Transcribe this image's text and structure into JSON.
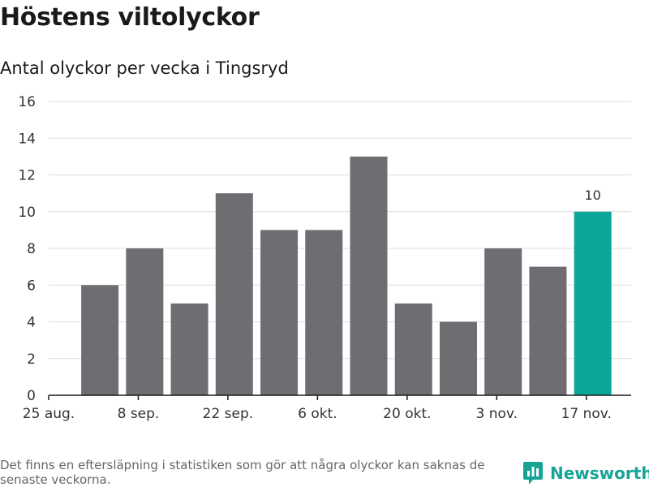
{
  "title": "Höstens viltolyckor",
  "subtitle": "Antal olyckor per vecka i Tingsryd",
  "footnote": "Det finns en eftersläpning i statistiken som gör att några olyckor kan saknas de senaste veckorna.",
  "brand": {
    "name": "Newsworthy",
    "color": "#17a497"
  },
  "colors": {
    "bar": "#6e6d72",
    "highlight": "#0ba59a",
    "grid": "#dcdcdc",
    "axis": "#1a1a1a"
  },
  "chart_data": {
    "type": "bar",
    "title": "Höstens viltolyckor",
    "subtitle": "Antal olyckor per vecka i Tingsryd",
    "xlabel": "",
    "ylabel": "",
    "x_axis": "date",
    "x_range": [
      "2024-08-25",
      "2024-11-24"
    ],
    "ylim": [
      0,
      16
    ],
    "yticks": [
      0,
      2,
      4,
      6,
      8,
      10,
      12,
      14,
      16
    ],
    "xticks": [
      {
        "date": "2024-08-25",
        "label": "25 aug."
      },
      {
        "date": "2024-09-08",
        "label": "8 sep."
      },
      {
        "date": "2024-09-22",
        "label": "22 sep."
      },
      {
        "date": "2024-10-06",
        "label": "6 okt."
      },
      {
        "date": "2024-10-20",
        "label": "20 okt."
      },
      {
        "date": "2024-11-03",
        "label": "3 nov."
      },
      {
        "date": "2024-11-17",
        "label": "17 nov."
      }
    ],
    "grid": true,
    "categories": [
      "2024-09-02",
      "2024-09-09",
      "2024-09-16",
      "2024-09-23",
      "2024-09-30",
      "2024-10-07",
      "2024-10-14",
      "2024-10-21",
      "2024-10-28",
      "2024-11-04",
      "2024-11-11",
      "2024-11-18"
    ],
    "values": [
      6,
      8,
      5,
      11,
      9,
      9,
      13,
      5,
      4,
      8,
      7,
      10
    ],
    "highlight_index": 11,
    "data_labels": [
      {
        "index": 11,
        "text": "10"
      }
    ]
  }
}
